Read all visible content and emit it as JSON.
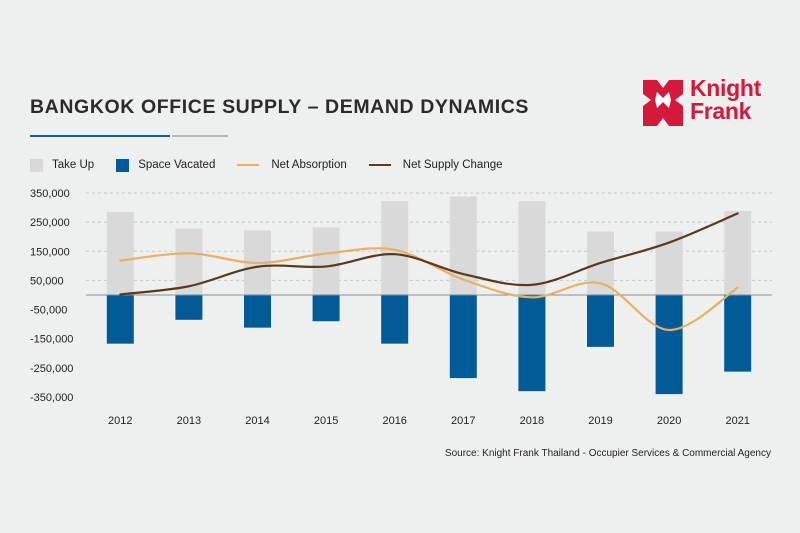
{
  "title": "BANGKOK OFFICE SUPPLY – DEMAND DYNAMICS",
  "logo": {
    "line1": "Knight",
    "line2": "Frank",
    "color": "#d4193c"
  },
  "source": "Source: Knight Frank Thailand - Occupier Services & Commercial Agency",
  "colors": {
    "take_up": "#d9d9d9",
    "space_vacated": "#005b96",
    "net_absorption": "#e8b064",
    "net_supply_change": "#5a3a1e",
    "rule_blue": "#1f5b8a",
    "rule_grey": "#b5b9bd"
  },
  "legend": [
    "Take Up",
    "Space Vacated",
    "Net Absorption",
    "Net Supply Change"
  ],
  "chart_data": {
    "type": "bar",
    "categories": [
      "2012",
      "2013",
      "2014",
      "2015",
      "2016",
      "2017",
      "2018",
      "2019",
      "2020",
      "2021"
    ],
    "series": [
      {
        "name": "Take Up",
        "type": "bar",
        "values": [
          285000,
          228000,
          222000,
          232000,
          322000,
          338000,
          322000,
          218000,
          218000,
          288000
        ]
      },
      {
        "name": "Space Vacated",
        "type": "bar",
        "values": [
          -167000,
          -85000,
          -112000,
          -90000,
          -167000,
          -285000,
          -330000,
          -178000,
          -340000,
          -263000
        ]
      },
      {
        "name": "Net Absorption",
        "type": "line",
        "values": [
          118000,
          143000,
          110000,
          142000,
          155000,
          53000,
          -8000,
          40000,
          -120000,
          25000
        ]
      },
      {
        "name": "Net Supply Change",
        "type": "line",
        "values": [
          2000,
          30000,
          97000,
          98000,
          140000,
          72000,
          35000,
          110000,
          180000,
          280000
        ]
      }
    ],
    "yticks": [
      "350,000",
      "250,000",
      "150,000",
      "50,000",
      "-50,000",
      "-150,000",
      "-250,000",
      "-350,000"
    ],
    "ylim": [
      -350000,
      350000
    ],
    "grid": true,
    "legend_position": "top-left"
  }
}
